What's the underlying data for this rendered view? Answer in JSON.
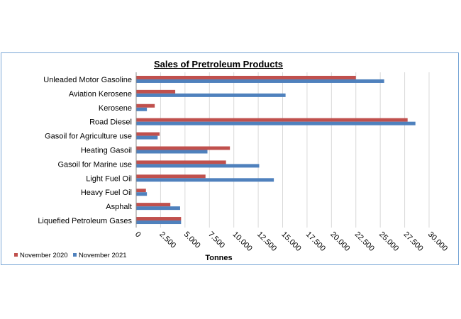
{
  "chart_data": {
    "type": "bar",
    "orientation": "horizontal",
    "title": "Sales of Pretroleum Products",
    "xlabel": "Tonnes",
    "ylabel": "",
    "categories": [
      "Unleaded Motor Gasoline",
      "Aviation Kerosene",
      "Kerosene",
      "Road Diesel",
      "Gasoil for Agriculture use",
      "Heating Gasoil",
      "Gasoil for Marine use",
      "Light Fuel Oil",
      "Heavy Fuel Oil",
      "Asphalt",
      "Liquefied Petroleum Gases"
    ],
    "series": [
      {
        "name": "November 2020",
        "color": "#c0504d",
        "values": [
          22500,
          4000,
          1900,
          27800,
          2400,
          9600,
          9200,
          7100,
          1000,
          3500,
          4600
        ]
      },
      {
        "name": "November 2021",
        "color": "#4f81bd",
        "values": [
          25400,
          15300,
          1100,
          28600,
          2200,
          7300,
          12600,
          14100,
          1100,
          4500,
          4600
        ]
      }
    ],
    "xlim": [
      0,
      30000
    ],
    "xticks": [
      "0",
      "2.500",
      "5.000",
      "7.500",
      "10.000",
      "12.500",
      "15.000",
      "17.500",
      "20.000",
      "22.500",
      "25.000",
      "27.500",
      "30.000"
    ],
    "grid": "vertical",
    "legend": "bottom-left"
  }
}
